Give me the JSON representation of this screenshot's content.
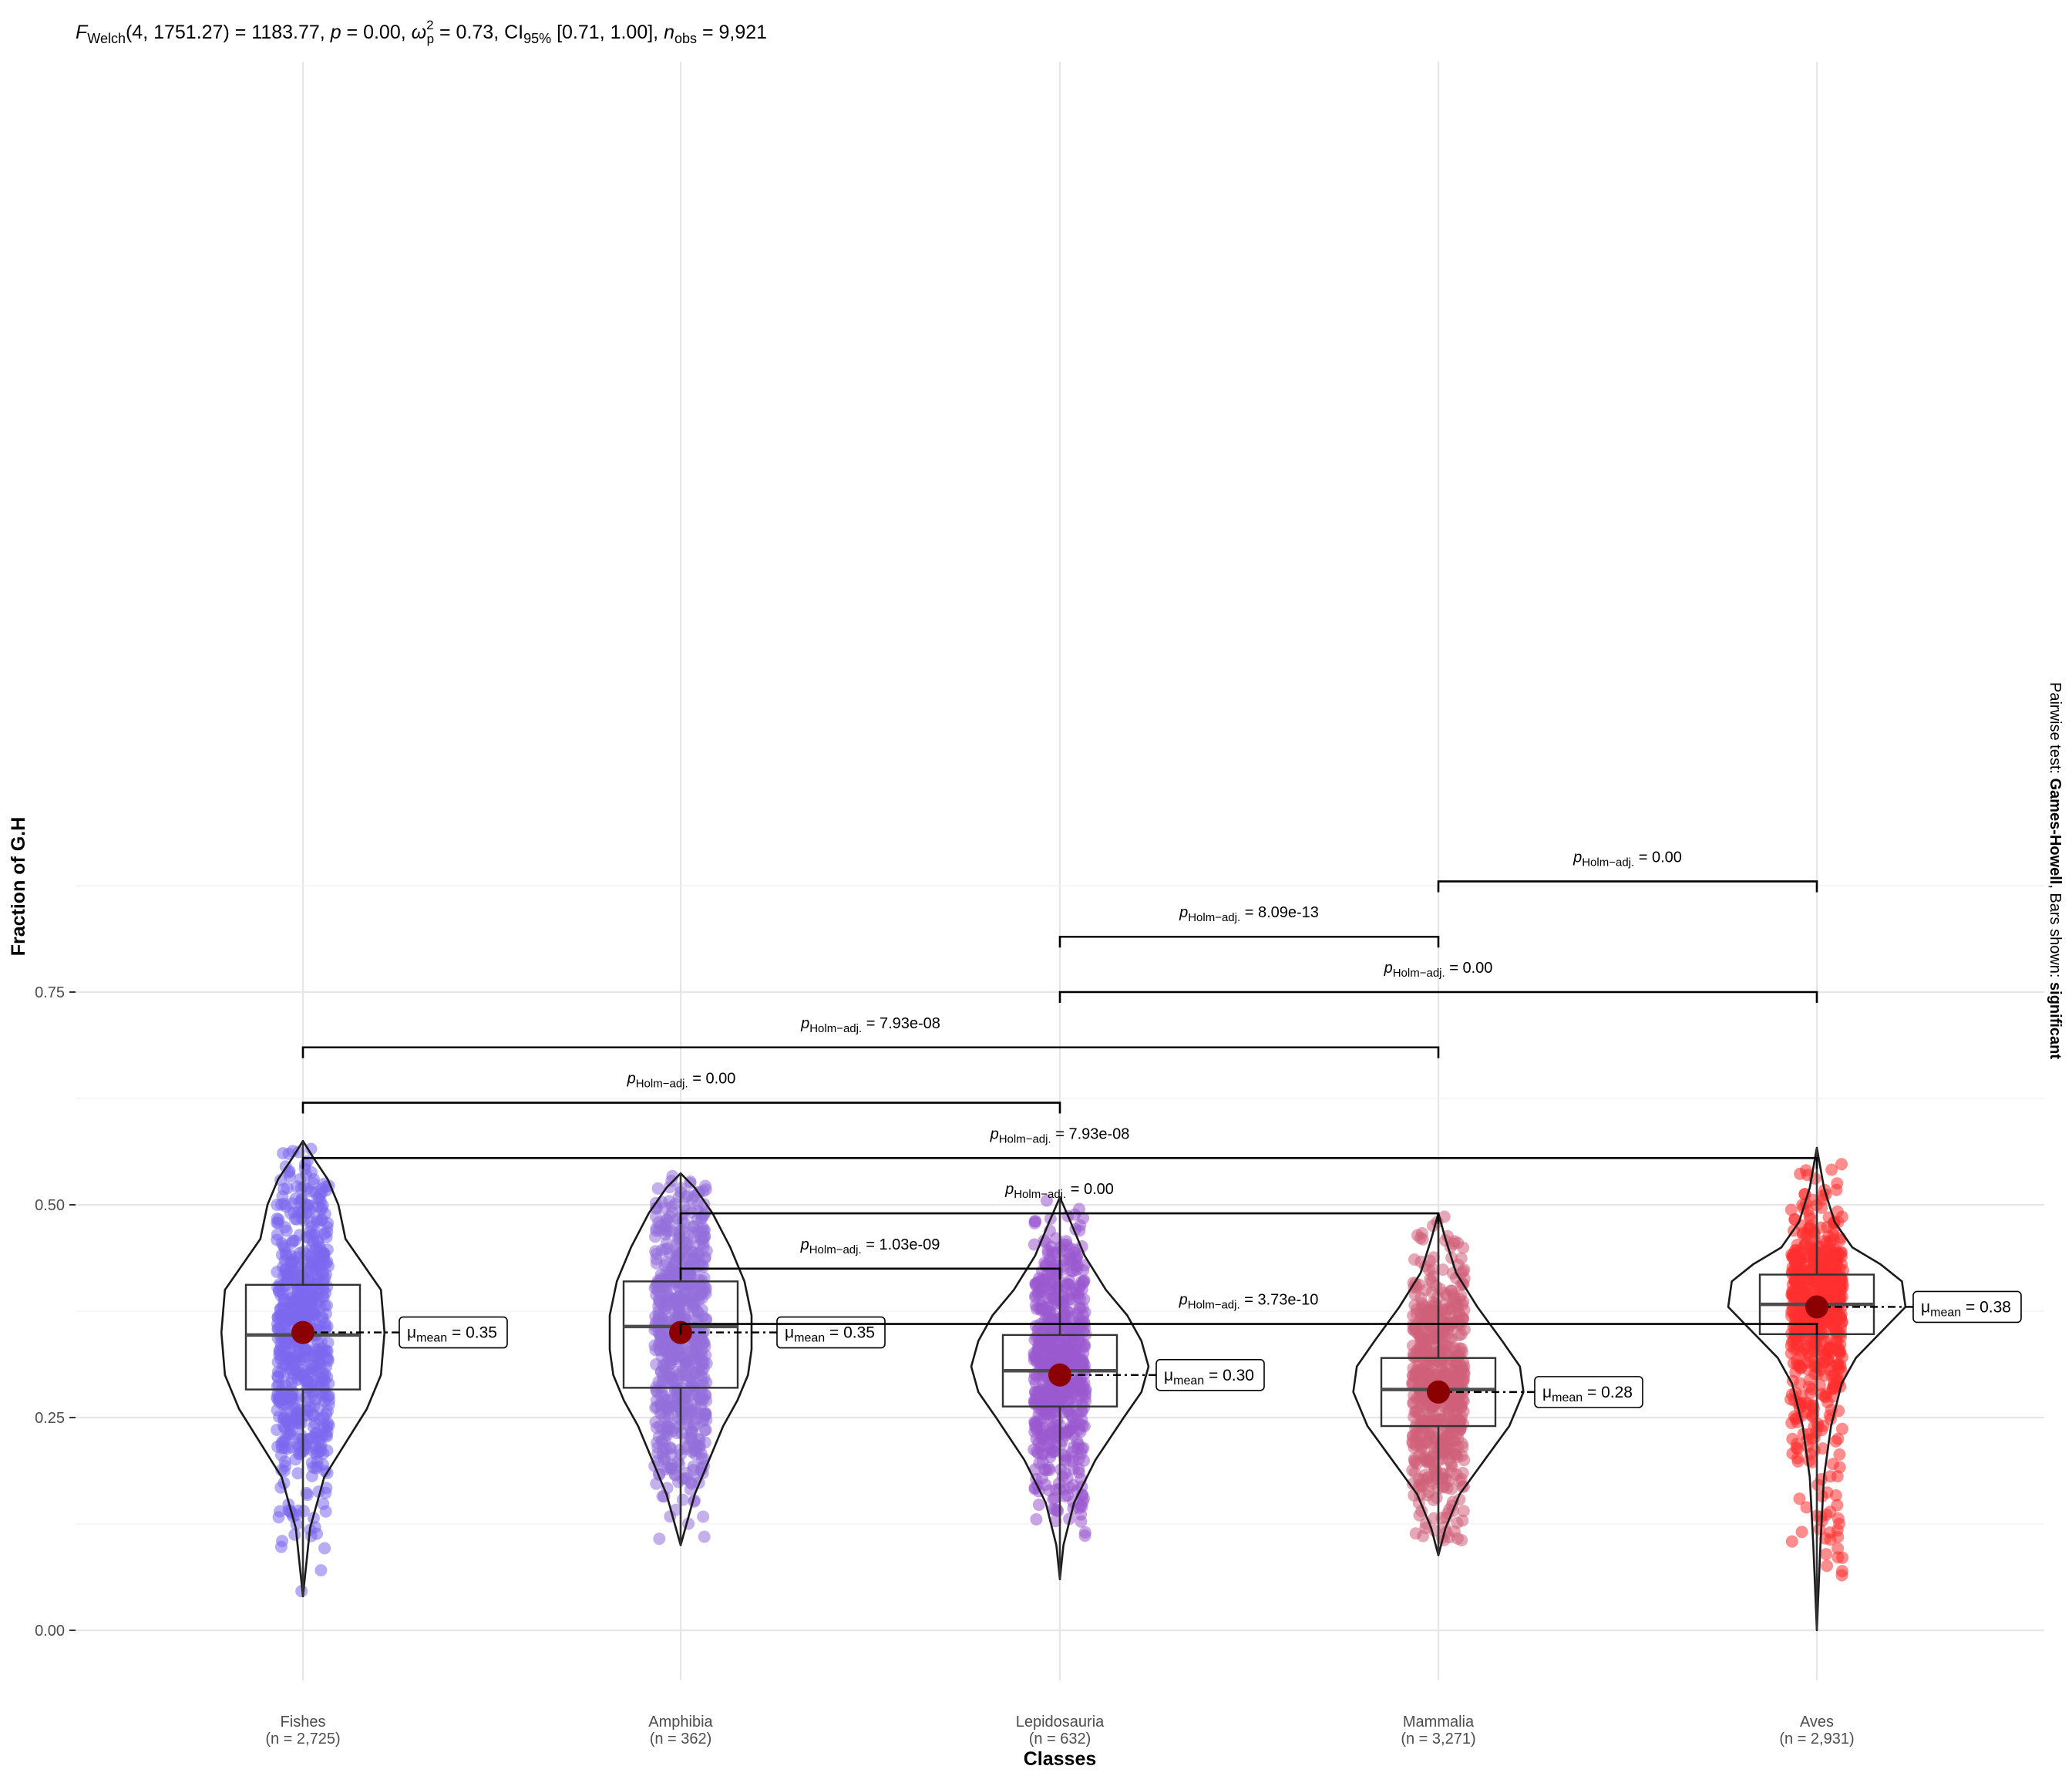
{
  "chart_data": {
    "type": "violin",
    "subtitle": {
      "f_symbol": "F",
      "f_sub": "Welch",
      "f_args": "(4, 1751.27) = 1183.77, ",
      "p_symbol": "p",
      "p_value": " = 0.00, ",
      "effect_symbol": "ω",
      "effect_sup": "2",
      "effect_sub": "p",
      "effect_value": " = 0.73, CI",
      "ci_sub": "95%",
      "ci_value": " [0.71, 1.00], ",
      "n_symbol": "n",
      "n_sub": "obs",
      "n_value": " = 9,921"
    },
    "xlabel": "Classes",
    "ylabel": "Fraction of G.H",
    "ylim": [
      -0.05,
      0.95
    ],
    "yticks": [
      0.0,
      0.25,
      0.5,
      0.75
    ],
    "ytick_labels": [
      "0.00",
      "0.25",
      "0.50",
      "0.75"
    ],
    "grid": true,
    "categories": [
      {
        "name": "Fishes",
        "n_label": "(n = 2,725)",
        "color": "#7b68ee",
        "mean": 0.35,
        "mean_label": "= 0.35",
        "q1": 0.283,
        "median": 0.347,
        "q3": 0.406,
        "whisker_low": 0.04,
        "whisker_high": 0.575,
        "data_min": 0.04,
        "data_max": 0.575,
        "density": [
          [
            0.04,
            0
          ],
          [
            0.12,
            0.02
          ],
          [
            0.18,
            0.06
          ],
          [
            0.22,
            0.12
          ],
          [
            0.26,
            0.18
          ],
          [
            0.3,
            0.22
          ],
          [
            0.35,
            0.23
          ],
          [
            0.4,
            0.22
          ],
          [
            0.43,
            0.17
          ],
          [
            0.46,
            0.12
          ],
          [
            0.5,
            0.1
          ],
          [
            0.53,
            0.07
          ],
          [
            0.555,
            0.03
          ],
          [
            0.575,
            0
          ]
        ]
      },
      {
        "name": "Amphibia",
        "n_label": "(n = 362)",
        "color": "#9370db",
        "mean": 0.35,
        "mean_label": "= 0.35",
        "q1": 0.285,
        "median": 0.357,
        "q3": 0.41,
        "whisker_low": 0.1,
        "whisker_high": 0.537,
        "data_min": 0.1,
        "data_max": 0.537,
        "density": [
          [
            0.1,
            0
          ],
          [
            0.13,
            0.02
          ],
          [
            0.16,
            0.04
          ],
          [
            0.2,
            0.08
          ],
          [
            0.24,
            0.12
          ],
          [
            0.27,
            0.16
          ],
          [
            0.3,
            0.19
          ],
          [
            0.33,
            0.2
          ],
          [
            0.37,
            0.2
          ],
          [
            0.41,
            0.18
          ],
          [
            0.45,
            0.14
          ],
          [
            0.49,
            0.09
          ],
          [
            0.52,
            0.04
          ],
          [
            0.537,
            0
          ]
        ]
      },
      {
        "name": "Lepidosauria",
        "n_label": "(n = 632)",
        "color": "#9b59d0",
        "mean": 0.3,
        "mean_label": "= 0.30",
        "q1": 0.263,
        "median": 0.305,
        "q3": 0.347,
        "whisker_low": 0.06,
        "whisker_high": 0.509,
        "data_min": 0.06,
        "data_max": 0.509,
        "density": [
          [
            0.06,
            0
          ],
          [
            0.1,
            0.01
          ],
          [
            0.15,
            0.04
          ],
          [
            0.2,
            0.1
          ],
          [
            0.25,
            0.18
          ],
          [
            0.28,
            0.23
          ],
          [
            0.31,
            0.25
          ],
          [
            0.34,
            0.23
          ],
          [
            0.37,
            0.19
          ],
          [
            0.4,
            0.13
          ],
          [
            0.44,
            0.07
          ],
          [
            0.48,
            0.03
          ],
          [
            0.509,
            0
          ]
        ]
      },
      {
        "name": "Mammalia",
        "n_label": "(n = 3,271)",
        "color": "#d0607a",
        "mean": 0.28,
        "mean_label": "= 0.28",
        "q1": 0.24,
        "median": 0.283,
        "q3": 0.32,
        "whisker_low": 0.088,
        "whisker_high": 0.49,
        "data_min": 0.088,
        "data_max": 0.49,
        "density": [
          [
            0.088,
            0
          ],
          [
            0.12,
            0.02
          ],
          [
            0.16,
            0.06
          ],
          [
            0.2,
            0.13
          ],
          [
            0.24,
            0.2
          ],
          [
            0.28,
            0.24
          ],
          [
            0.31,
            0.23
          ],
          [
            0.34,
            0.18
          ],
          [
            0.38,
            0.11
          ],
          [
            0.42,
            0.05
          ],
          [
            0.46,
            0.02
          ],
          [
            0.49,
            0
          ]
        ]
      },
      {
        "name": "Aves",
        "n_label": "(n = 2,931)",
        "color": "#ff3030",
        "mean": 0.38,
        "mean_label": "= 0.38",
        "q1": 0.348,
        "median": 0.383,
        "q3": 0.418,
        "whisker_low": 0.0,
        "whisker_high": 0.567,
        "data_min": 0.0,
        "data_max": 0.567,
        "density": [
          [
            0.0,
            0
          ],
          [
            0.1,
            0.01
          ],
          [
            0.18,
            0.02
          ],
          [
            0.24,
            0.04
          ],
          [
            0.29,
            0.07
          ],
          [
            0.32,
            0.11
          ],
          [
            0.35,
            0.18
          ],
          [
            0.38,
            0.25
          ],
          [
            0.41,
            0.24
          ],
          [
            0.43,
            0.18
          ],
          [
            0.45,
            0.1
          ],
          [
            0.48,
            0.05
          ],
          [
            0.52,
            0.02
          ],
          [
            0.567,
            0
          ]
        ]
      }
    ],
    "pairwise": {
      "caption_prefix": "Pairwise test: ",
      "caption_test": "Games-Howell",
      "caption_mid": ", Bars shown: ",
      "caption_bars": "significant",
      "label_symbol": "p",
      "label_sub": "Holm−adj.",
      "comparisons": [
        {
          "from": 3,
          "to": 4,
          "y": 0.88,
          "label": "= 0.00"
        },
        {
          "from": 2,
          "to": 3,
          "y": 0.815,
          "label": "= 8.09e-13"
        },
        {
          "from": 2,
          "to": 4,
          "y": 0.75,
          "label": "= 0.00"
        },
        {
          "from": 0,
          "to": 3,
          "y": 0.685,
          "label": "= 7.93e-08"
        },
        {
          "from": 0,
          "to": 2,
          "y": 0.62,
          "label": "= 0.00"
        },
        {
          "from": 0,
          "to": 4,
          "y": 0.555,
          "label": "= 7.93e-08"
        },
        {
          "from": 1,
          "to": 3,
          "y": 0.49,
          "label": "= 0.00"
        },
        {
          "from": 1,
          "to": 2,
          "y": 0.425,
          "label": "= 1.03e-09"
        },
        {
          "from": 1,
          "to": 4,
          "y": 0.36,
          "label": "= 3.73e-10"
        }
      ]
    },
    "mean_symbol": "μ",
    "mean_sub": "mean"
  }
}
